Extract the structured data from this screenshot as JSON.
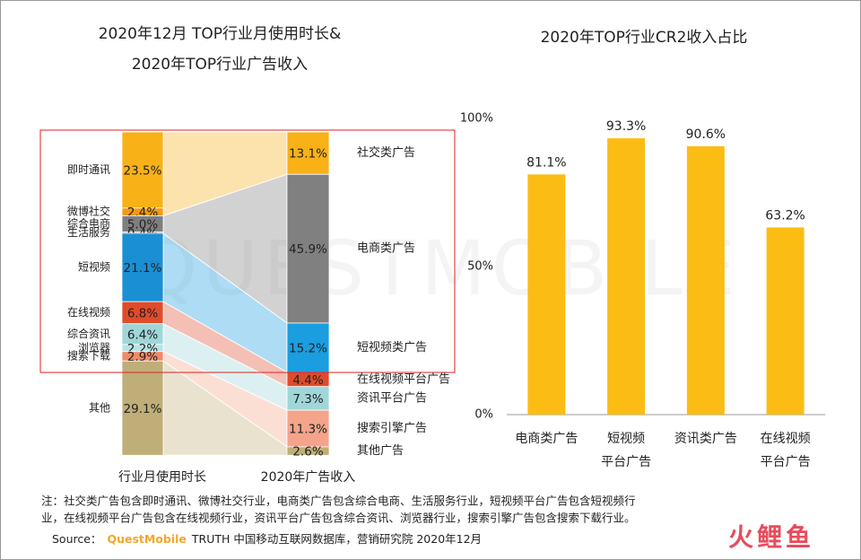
{
  "chart_data": [
    {
      "type": "sankey",
      "title": [
        "2020年12月 TOP行业月使用时长&",
        "2020年TOP行业广告收入"
      ],
      "stacks": [
        {
          "name": "行业月使用时长",
          "categories": [
            "即时通讯",
            "微博社交",
            "综合电商",
            "生活服务",
            "短视频",
            "在线视频",
            "综合资讯",
            "浏览器",
            "搜索下载",
            "其他"
          ],
          "values": [
            23.5,
            2.4,
            5.0,
            0.4,
            21.1,
            6.8,
            6.4,
            2.2,
            2.9,
            29.1
          ],
          "value_labels": [
            "23.5%",
            "2.4%",
            "5.0%",
            "0.4%",
            "21.1%",
            "6.8%",
            "6.4%",
            "2.2%",
            "2.9%",
            "29.1%"
          ],
          "colors": [
            "#f8b117",
            "#f49a12",
            "#7f7f7f",
            "#8c8c8c",
            "#1a8fd3",
            "#e04b2b",
            "#9fd7d8",
            "#b8e3e3",
            "#f08a68",
            "#bfae78"
          ]
        },
        {
          "name": "2020年广告收入",
          "categories": [
            "社交类广告",
            "电商类广告",
            "短视频类广告",
            "在线视频平台广告",
            "资讯平台广告",
            "搜索引擎广告",
            "其他广告"
          ],
          "values": [
            13.1,
            45.9,
            15.2,
            4.4,
            7.3,
            11.3,
            2.6
          ],
          "value_labels": [
            "13.1%",
            "45.9%",
            "15.2%",
            "4.4%",
            "7.3%",
            "11.3%",
            "2.6%"
          ],
          "colors": [
            "#f8b117",
            "#808080",
            "#1a9ee0",
            "#e04b2b",
            "#9fd7d8",
            "#f4a48a",
            "#bfae78"
          ]
        }
      ]
    },
    {
      "type": "bar",
      "title": "2020年TOP行业CR2收入占比",
      "categories": [
        "电商类广告",
        "短视频\n平台广告",
        "资讯类广告",
        "在线视频\n平台广告"
      ],
      "values": [
        81.1,
        93.3,
        90.6,
        63.2
      ],
      "value_labels": [
        "81.1%",
        "93.3%",
        "90.6%",
        "63.2%"
      ],
      "color": "#fbbd14",
      "ylim": [
        0,
        100
      ],
      "yticks": [
        {
          "value": 0,
          "label": "0%"
        },
        {
          "value": 50,
          "label": "50%"
        },
        {
          "value": 100,
          "label": "100%"
        }
      ]
    }
  ],
  "watermark": "QUESTMOBILE",
  "note": [
    "注：社交类广告包含即时通讯、微博社交行业，电商类广告包含综合电商、生活服务行业，短视频平台广告包含短视频行",
    "业，在线视频平台广告包含在线视频行业，资讯平台广告包含综合资讯、浏览器行业，搜索引擎广告包含搜索下载行业。"
  ],
  "source": {
    "label": "Source：",
    "brand": "QuestMobile",
    "text": "TRUTH 中国移动互联网数据库，营销研究院 2020年12月"
  },
  "logo": "火鲤鱼"
}
